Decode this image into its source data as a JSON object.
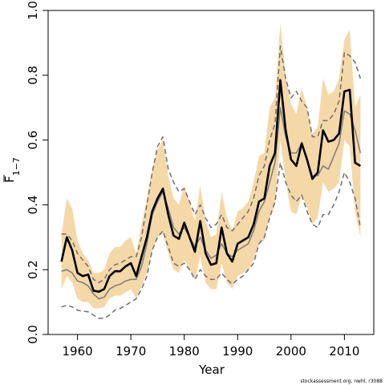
{
  "chart_data": {
    "type": "line",
    "xlabel": "Year",
    "ylabel": "F",
    "ylabel_subscript": "1−7",
    "xlim": [
      1954.5,
      2015.5
    ],
    "ylim": [
      0.0,
      1.0
    ],
    "x_ticks": [
      1960,
      1970,
      1980,
      1990,
      2000,
      2010
    ],
    "x_tick_labels": [
      "1960",
      "1970",
      "1980",
      "1990",
      "2000",
      "2010"
    ],
    "y_ticks": [
      0.0,
      0.2,
      0.4,
      0.6,
      0.8,
      1.0
    ],
    "y_tick_labels": [
      "0.0",
      "0.2",
      "0.4",
      "0.6",
      "0.8",
      "1.0"
    ],
    "grid": false,
    "footnote": "stockassessment.org, nwhl, r3088",
    "colors": {
      "band": "#f5d8a8",
      "estimate": "#000000",
      "comparison": "#808080",
      "comparison_ci": "#6e6e6e"
    },
    "x": [
      1957,
      1958,
      1959,
      1960,
      1961,
      1962,
      1963,
      1964,
      1965,
      1966,
      1967,
      1968,
      1969,
      1970,
      1971,
      1972,
      1973,
      1974,
      1975,
      1976,
      1977,
      1978,
      1979,
      1980,
      1981,
      1982,
      1983,
      1984,
      1985,
      1986,
      1987,
      1988,
      1989,
      1990,
      1991,
      1992,
      1993,
      1994,
      1995,
      1996,
      1997,
      1998,
      1999,
      2000,
      2001,
      2002,
      2003,
      2004,
      2005,
      2006,
      2007,
      2008,
      2009,
      2010,
      2011,
      2012,
      2013
    ],
    "series": [
      {
        "role": "estimate",
        "values": [
          0.225,
          0.3,
          0.26,
          0.19,
          0.18,
          0.185,
          0.135,
          0.132,
          0.14,
          0.18,
          0.195,
          0.195,
          0.21,
          0.22,
          0.18,
          0.24,
          0.3,
          0.38,
          0.42,
          0.45,
          0.37,
          0.305,
          0.295,
          0.345,
          0.3,
          0.255,
          0.35,
          0.25,
          0.215,
          0.22,
          0.33,
          0.25,
          0.225,
          0.28,
          0.29,
          0.3,
          0.34,
          0.41,
          0.42,
          0.52,
          0.56,
          0.785,
          0.63,
          0.54,
          0.52,
          0.59,
          0.54,
          0.48,
          0.5,
          0.63,
          0.595,
          0.6,
          0.62,
          0.75,
          0.755,
          0.53,
          0.52
        ]
      },
      {
        "role": "band_upper",
        "values": [
          0.31,
          0.42,
          0.39,
          0.29,
          0.25,
          0.23,
          0.19,
          0.19,
          0.2,
          0.25,
          0.27,
          0.27,
          0.29,
          0.3,
          0.25,
          0.34,
          0.42,
          0.51,
          0.57,
          0.6,
          0.49,
          0.42,
          0.4,
          0.46,
          0.41,
          0.35,
          0.46,
          0.35,
          0.3,
          0.31,
          0.44,
          0.36,
          0.32,
          0.38,
          0.39,
          0.41,
          0.47,
          0.55,
          0.56,
          0.7,
          0.73,
          0.96,
          0.8,
          0.71,
          0.68,
          0.76,
          0.7,
          0.62,
          0.64,
          0.79,
          0.74,
          0.75,
          0.79,
          0.91,
          0.94,
          0.7,
          0.74
        ]
      },
      {
        "role": "band_lower",
        "values": [
          0.14,
          0.18,
          0.16,
          0.11,
          0.1,
          0.1,
          0.08,
          0.08,
          0.085,
          0.11,
          0.12,
          0.12,
          0.13,
          0.14,
          0.11,
          0.15,
          0.19,
          0.26,
          0.3,
          0.31,
          0.25,
          0.2,
          0.19,
          0.23,
          0.2,
          0.17,
          0.24,
          0.16,
          0.14,
          0.14,
          0.22,
          0.16,
          0.14,
          0.18,
          0.19,
          0.2,
          0.23,
          0.28,
          0.29,
          0.36,
          0.4,
          0.6,
          0.47,
          0.38,
          0.37,
          0.43,
          0.39,
          0.34,
          0.36,
          0.47,
          0.44,
          0.45,
          0.47,
          0.6,
          0.58,
          0.38,
          0.3
        ]
      },
      {
        "role": "comparison",
        "values": [
          0.195,
          0.2,
          0.19,
          0.165,
          0.16,
          0.15,
          0.125,
          0.11,
          0.115,
          0.14,
          0.15,
          0.155,
          0.165,
          0.17,
          0.17,
          0.21,
          0.28,
          0.37,
          0.41,
          0.44,
          0.39,
          0.33,
          0.31,
          0.33,
          0.3,
          0.27,
          0.3,
          0.26,
          0.235,
          0.245,
          0.28,
          0.25,
          0.24,
          0.26,
          0.27,
          0.28,
          0.32,
          0.38,
          0.41,
          0.47,
          0.53,
          0.7,
          0.61,
          0.56,
          0.56,
          0.59,
          0.54,
          0.49,
          0.49,
          0.52,
          0.51,
          0.55,
          0.59,
          0.69,
          0.68,
          0.63,
          0.56
        ]
      },
      {
        "role": "comparison_upper",
        "values": [
          0.31,
          0.31,
          0.29,
          0.25,
          0.23,
          0.21,
          0.17,
          0.16,
          0.17,
          0.2,
          0.215,
          0.22,
          0.23,
          0.24,
          0.24,
          0.3,
          0.4,
          0.5,
          0.58,
          0.61,
          0.51,
          0.47,
          0.44,
          0.45,
          0.41,
          0.37,
          0.4,
          0.36,
          0.33,
          0.34,
          0.37,
          0.33,
          0.32,
          0.34,
          0.36,
          0.38,
          0.42,
          0.49,
          0.52,
          0.6,
          0.65,
          0.89,
          0.79,
          0.73,
          0.75,
          0.72,
          0.7,
          0.61,
          0.61,
          0.66,
          0.66,
          0.68,
          0.72,
          0.87,
          0.86,
          0.84,
          0.79
        ]
      },
      {
        "role": "comparison_lower",
        "values": [
          0.085,
          0.09,
          0.085,
          0.075,
          0.072,
          0.07,
          0.06,
          0.05,
          0.05,
          0.06,
          0.075,
          0.08,
          0.09,
          0.1,
          0.11,
          0.14,
          0.18,
          0.26,
          0.3,
          0.32,
          0.27,
          0.22,
          0.21,
          0.22,
          0.2,
          0.17,
          0.2,
          0.18,
          0.17,
          0.17,
          0.19,
          0.17,
          0.155,
          0.17,
          0.18,
          0.2,
          0.22,
          0.28,
          0.3,
          0.36,
          0.41,
          0.53,
          0.47,
          0.43,
          0.41,
          0.43,
          0.38,
          0.34,
          0.33,
          0.37,
          0.37,
          0.4,
          0.44,
          0.5,
          0.47,
          0.42,
          0.33
        ]
      }
    ]
  }
}
